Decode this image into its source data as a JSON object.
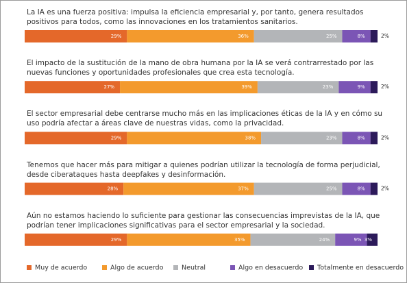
{
  "chart_data": {
    "type": "stacked-bar",
    "orientation": "horizontal",
    "categories": [
      "La IA es una fuerza positiva: impulsa la eficiencia empresarial y, por tanto, genera resultados positivos para todos, como las innovaciones en los tratamientos sanitarios.",
      "El impacto de la sustitución de la mano de obra humana por la IA se verá contrarrestado por las nuevas funciones y oportunidades profesionales que crea esta tecnología.",
      "El sector empresarial debe centrarse mucho más en las implicaciones éticas de la IA y en cómo su uso podría afectar a áreas clave de nuestras vidas, como la privacidad.",
      "Tenemos que hacer más para mitigar a quienes podrían utilizar la tecnología de forma perjudicial, desde ciberataques hasta deepfakes y desinformación.",
      "Aún no estamos haciendo lo suficiente para gestionar las consecuencias imprevistas de la IA, que podrían tener implicaciones significativas para el sector empresarial y la sociedad."
    ],
    "series": [
      {
        "name": "Muy de acuerdo",
        "color": "#e4682a",
        "values": [
          29,
          27,
          29,
          28,
          29
        ],
        "value_labels": [
          "29%",
          "27%",
          "29%",
          "28%",
          "29%"
        ]
      },
      {
        "name": "Algo de acuerdo",
        "color": "#f39a2d",
        "values": [
          36,
          39,
          38,
          37,
          35
        ],
        "value_labels": [
          "36%",
          "39%",
          "38%",
          "37%",
          "35%"
        ]
      },
      {
        "name": "Neutral",
        "color": "#b3b5b8",
        "values": [
          25,
          23,
          23,
          25,
          24
        ],
        "value_labels": [
          "25%",
          "23%",
          "23%",
          "25%",
          "24%"
        ]
      },
      {
        "name": "Algo en desacuerdo",
        "color": "#7b55b5",
        "values": [
          8,
          9,
          8,
          8,
          9
        ],
        "value_labels": [
          "8%",
          "9%",
          "8%",
          "8%",
          "9%"
        ]
      },
      {
        "name": "Totalmente en desacuerdo",
        "color": "#2c1a5a",
        "values": [
          2,
          2,
          2,
          2,
          3
        ],
        "value_labels": [
          "2%",
          "2%",
          "2%",
          "2%",
          "3%"
        ]
      }
    ],
    "legend": "bottom"
  }
}
